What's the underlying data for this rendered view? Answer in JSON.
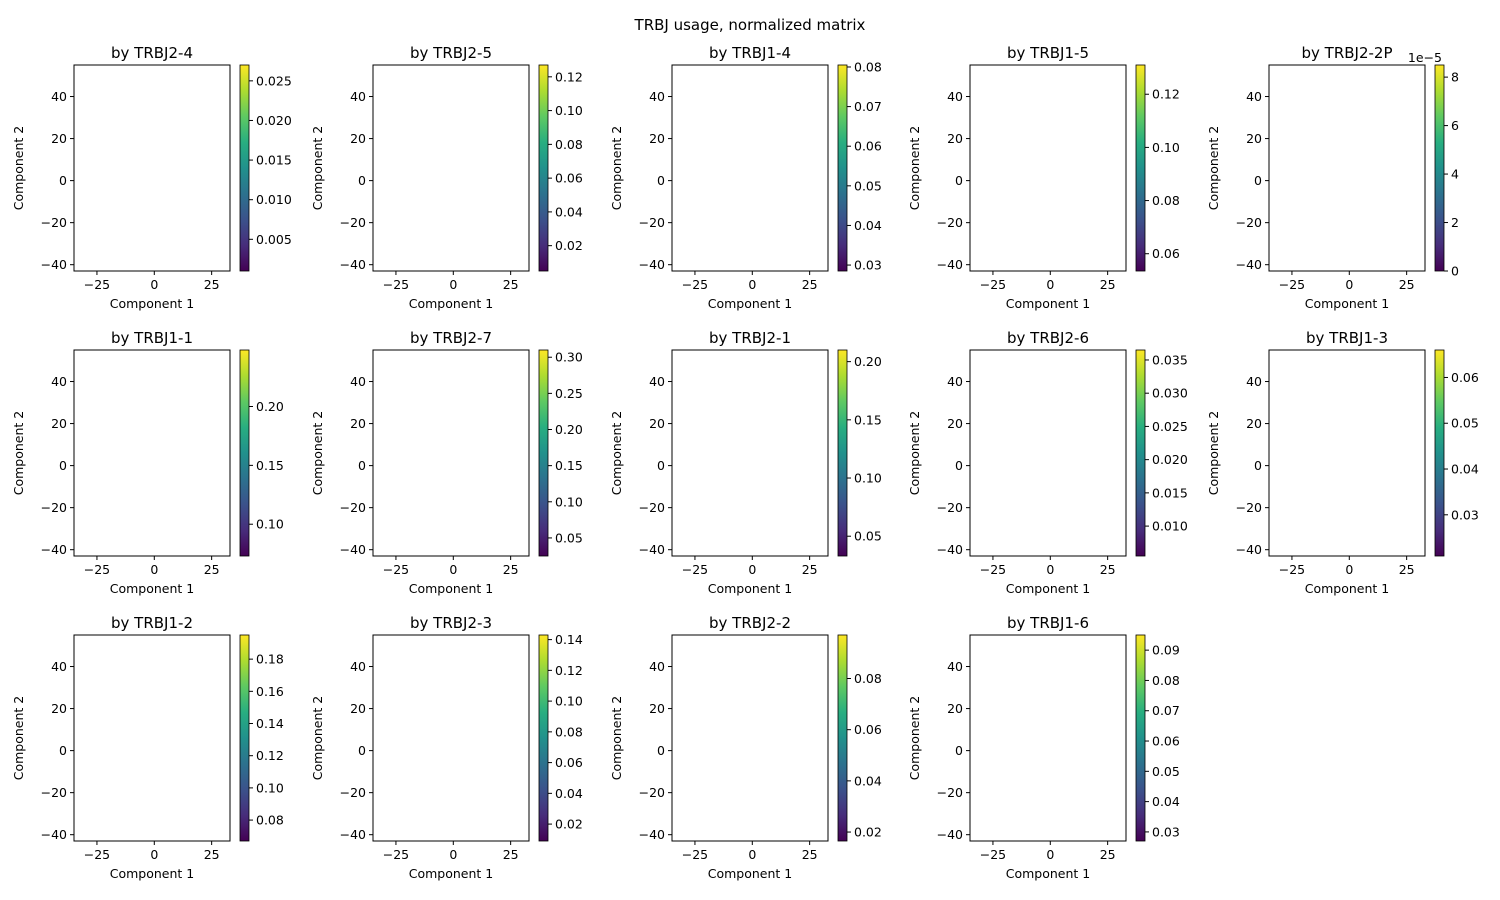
{
  "suptitle": "TRBJ usage, normalized matrix",
  "chart_data": {
    "type": "scatter",
    "colormap": "viridis",
    "marker_color_low": "#440154",
    "marker_color_high": "#fde725",
    "xlim": [
      -35,
      33
    ],
    "ylim": [
      -43,
      55
    ],
    "xticks": [
      -25,
      0,
      25
    ],
    "yticks": [
      -40,
      -20,
      0,
      20,
      40
    ],
    "xlabel": "Component 1",
    "ylabel": "Component 2",
    "panels": [
      {
        "title": "by TRBJ2-4",
        "cbar_ticks": [
          "0.005",
          "0.010",
          "0.015",
          "0.020",
          "0.025"
        ],
        "cbar_tick_values": [
          0.005,
          0.01,
          0.015,
          0.02,
          0.025
        ],
        "cbar_range": [
          0.001,
          0.027
        ],
        "cbar_offset": ""
      },
      {
        "title": "by TRBJ2-5",
        "cbar_ticks": [
          "0.02",
          "0.04",
          "0.06",
          "0.08",
          "0.10",
          "0.12"
        ],
        "cbar_tick_values": [
          0.02,
          0.04,
          0.06,
          0.08,
          0.1,
          0.12
        ],
        "cbar_range": [
          0.005,
          0.127
        ],
        "cbar_offset": ""
      },
      {
        "title": "by TRBJ1-4",
        "cbar_ticks": [
          "0.03",
          "0.04",
          "0.05",
          "0.06",
          "0.07",
          "0.08"
        ],
        "cbar_tick_values": [
          0.03,
          0.04,
          0.05,
          0.06,
          0.07,
          0.08
        ],
        "cbar_range": [
          0.0285,
          0.0805
        ],
        "cbar_offset": ""
      },
      {
        "title": "by TRBJ1-5",
        "cbar_ticks": [
          "0.06",
          "0.08",
          "0.10",
          "0.12"
        ],
        "cbar_tick_values": [
          0.06,
          0.08,
          0.1,
          0.12
        ],
        "cbar_range": [
          0.0535,
          0.131
        ],
        "cbar_offset": ""
      },
      {
        "title": "by TRBJ2-2P",
        "cbar_ticks": [
          "0",
          "2",
          "4",
          "6",
          "8"
        ],
        "cbar_tick_values": [
          0,
          2,
          4,
          6,
          8
        ],
        "cbar_range": [
          0,
          8.5
        ],
        "cbar_offset": "1e−5"
      },
      {
        "title": "by TRBJ1-1",
        "cbar_ticks": [
          "0.10",
          "0.15",
          "0.20"
        ],
        "cbar_tick_values": [
          0.1,
          0.15,
          0.2
        ],
        "cbar_range": [
          0.073,
          0.248
        ],
        "cbar_offset": ""
      },
      {
        "title": "by TRBJ2-7",
        "cbar_ticks": [
          "0.05",
          "0.10",
          "0.15",
          "0.20",
          "0.25",
          "0.30"
        ],
        "cbar_tick_values": [
          0.05,
          0.1,
          0.15,
          0.2,
          0.25,
          0.3
        ],
        "cbar_range": [
          0.025,
          0.31
        ],
        "cbar_offset": ""
      },
      {
        "title": "by TRBJ2-1",
        "cbar_ticks": [
          "0.05",
          "0.10",
          "0.15",
          "0.20"
        ],
        "cbar_tick_values": [
          0.05,
          0.1,
          0.15,
          0.2
        ],
        "cbar_range": [
          0.033,
          0.21
        ],
        "cbar_offset": ""
      },
      {
        "title": "by TRBJ2-6",
        "cbar_ticks": [
          "0.010",
          "0.015",
          "0.020",
          "0.025",
          "0.030",
          "0.035"
        ],
        "cbar_tick_values": [
          0.01,
          0.015,
          0.02,
          0.025,
          0.03,
          0.035
        ],
        "cbar_range": [
          0.0055,
          0.0365
        ],
        "cbar_offset": ""
      },
      {
        "title": "by TRBJ1-3",
        "cbar_ticks": [
          "0.03",
          "0.04",
          "0.05",
          "0.06"
        ],
        "cbar_tick_values": [
          0.03,
          0.04,
          0.05,
          0.06
        ],
        "cbar_range": [
          0.021,
          0.066
        ],
        "cbar_offset": ""
      },
      {
        "title": "by TRBJ1-2",
        "cbar_ticks": [
          "0.08",
          "0.10",
          "0.12",
          "0.14",
          "0.16",
          "0.18"
        ],
        "cbar_tick_values": [
          0.08,
          0.1,
          0.12,
          0.14,
          0.16,
          0.18
        ],
        "cbar_range": [
          0.067,
          0.195
        ],
        "cbar_offset": ""
      },
      {
        "title": "by TRBJ2-3",
        "cbar_ticks": [
          "0.02",
          "0.04",
          "0.06",
          "0.08",
          "0.10",
          "0.12",
          "0.14"
        ],
        "cbar_tick_values": [
          0.02,
          0.04,
          0.06,
          0.08,
          0.1,
          0.12,
          0.14
        ],
        "cbar_range": [
          0.009,
          0.143
        ],
        "cbar_offset": ""
      },
      {
        "title": "by TRBJ2-2",
        "cbar_ticks": [
          "0.02",
          "0.04",
          "0.06",
          "0.08"
        ],
        "cbar_tick_values": [
          0.02,
          0.04,
          0.06,
          0.08
        ],
        "cbar_range": [
          0.0165,
          0.097
        ],
        "cbar_offset": ""
      },
      {
        "title": "by TRBJ1-6",
        "cbar_ticks": [
          "0.03",
          "0.04",
          "0.05",
          "0.06",
          "0.07",
          "0.08",
          "0.09"
        ],
        "cbar_tick_values": [
          0.03,
          0.04,
          0.05,
          0.06,
          0.07,
          0.08,
          0.09
        ],
        "cbar_range": [
          0.027,
          0.095
        ],
        "cbar_offset": ""
      }
    ]
  }
}
